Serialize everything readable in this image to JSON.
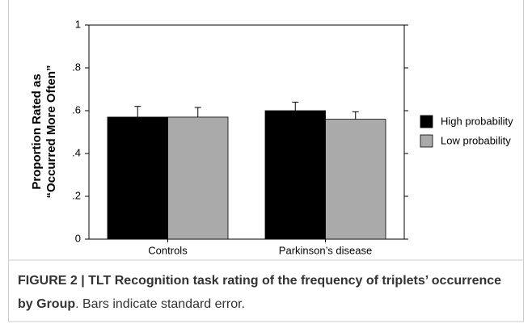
{
  "chart_data": {
    "type": "bar",
    "ylabel": [
      "Proportion Rated as",
      "“Occurred More Often”"
    ],
    "categories": [
      "Controls",
      "Parkinson’s disease"
    ],
    "series": [
      {
        "name": "High probability",
        "color": "#000000",
        "values": [
          0.57,
          0.6
        ],
        "errors": [
          0.05,
          0.04
        ]
      },
      {
        "name": "Low probability",
        "color": "#aaaaaa",
        "values": [
          0.57,
          0.56
        ],
        "errors": [
          0.045,
          0.035
        ]
      }
    ],
    "ylim": [
      0,
      1
    ],
    "yticks": [
      0,
      {
        "value": 0.2,
        "label": ".2"
      },
      {
        "value": 0.4,
        "label": ".4"
      },
      {
        "value": 0.6,
        "label": ".6"
      },
      {
        "value": 0.8,
        "label": ".8"
      },
      1
    ],
    "legend": "right"
  },
  "caption": {
    "title": "FIGURE 2 | TLT Recognition task rating of the frequency of triplets’ occurrence by Group",
    "text": ". Bars indicate standard error."
  }
}
